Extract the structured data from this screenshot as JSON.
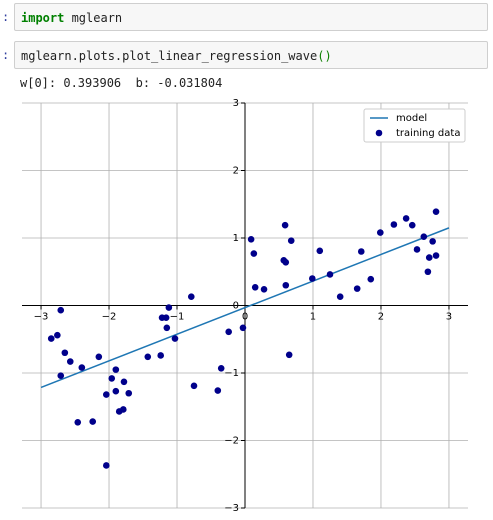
{
  "cells": [
    {
      "prompt": ":",
      "tokens": [
        {
          "text": "import",
          "color": "#008000",
          "bold": true
        },
        {
          "text": " mglearn",
          "color": "#222222",
          "bold": false
        }
      ]
    },
    {
      "prompt": ":",
      "tokens": [
        {
          "text": "mglearn.plots.plot_linear_regression_wave",
          "color": "#222222",
          "bold": false
        },
        {
          "text": "()",
          "color": "#0b8000",
          "bold": false
        }
      ]
    }
  ],
  "output_text": "w[0]: 0.393906  b: -0.031804",
  "chart_data": {
    "type": "scatter",
    "xlim": [
      -3.28,
      3.28
    ],
    "ylim": [
      -3,
      3
    ],
    "xticks": [
      {
        "value": -3,
        "label": "−3"
      },
      {
        "value": -2,
        "label": "−2"
      },
      {
        "value": -1,
        "label": "−1"
      },
      0,
      1,
      2,
      3
    ],
    "yticks": [
      {
        "value": -3,
        "label": "−3"
      },
      {
        "value": -2,
        "label": "−2"
      },
      {
        "value": -1,
        "label": "−1"
      },
      0,
      1,
      2,
      3
    ],
    "grid": true,
    "legend": "upper right",
    "series": [
      {
        "name": "model",
        "type": "line",
        "color": "#1f77b4",
        "x": [
          -3,
          3
        ],
        "values": [
          -1.2138,
          1.15
        ]
      },
      {
        "name": "training data",
        "type": "scatter",
        "color": "#00008b",
        "x": [
          -2.85,
          -2.76,
          -2.71,
          -2.65,
          -2.57,
          -2.71,
          -2.4,
          -2.46,
          -2.24,
          -2.15,
          -2.04,
          -1.96,
          -1.9,
          -1.9,
          -1.85,
          -1.79,
          -1.78,
          -1.71,
          -2.04,
          -1.43,
          -1.24,
          -1.22,
          -1.16,
          -1.15,
          -1.12,
          -1.03,
          -0.79,
          -0.75,
          -0.4,
          -0.35,
          -0.24,
          -0.03,
          0.09,
          0.13,
          0.15,
          0.28,
          0.59,
          0.57,
          0.6,
          0.6,
          0.68,
          0.65,
          0.99,
          1.1,
          1.25,
          1.4,
          1.65,
          1.71,
          1.85,
          1.99,
          2.19,
          2.37,
          2.46,
          2.53,
          2.63,
          2.69,
          2.71,
          2.76,
          2.81,
          2.81
        ],
        "values": [
          -0.49,
          -0.44,
          -0.07,
          -0.7,
          -0.83,
          -1.04,
          -0.92,
          -1.73,
          -1.72,
          -0.76,
          -1.32,
          -1.08,
          -0.95,
          -1.27,
          -1.57,
          -1.54,
          -1.13,
          -1.3,
          -2.37,
          -0.76,
          -0.74,
          -0.18,
          -0.18,
          -0.33,
          -0.03,
          -0.49,
          0.13,
          -1.19,
          -1.26,
          -0.93,
          -0.39,
          -0.33,
          0.98,
          0.77,
          0.27,
          0.24,
          1.19,
          0.67,
          0.64,
          0.3,
          0.96,
          -0.73,
          0.4,
          0.81,
          0.46,
          0.13,
          0.25,
          0.8,
          0.39,
          1.08,
          1.2,
          1.29,
          1.19,
          0.83,
          1.02,
          0.5,
          0.71,
          0.95,
          0.74,
          1.39
        ]
      }
    ]
  }
}
